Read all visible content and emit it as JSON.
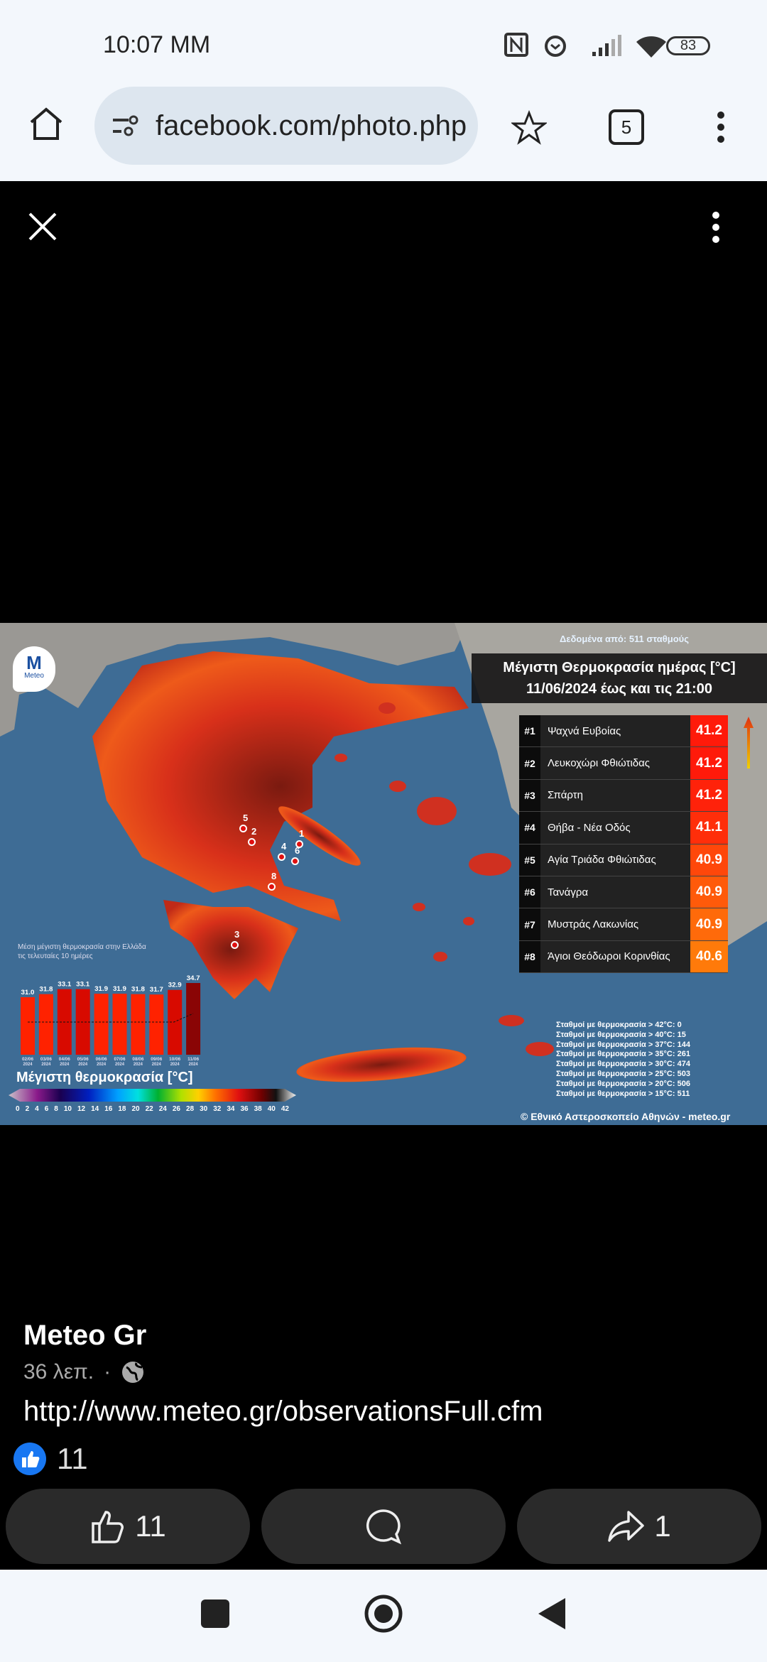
{
  "status_bar": {
    "time": "10:07 MM",
    "battery": "83",
    "icons": [
      "nfc-icon",
      "alarm-icon",
      "signal-icon",
      "wifi-icon",
      "battery-icon"
    ]
  },
  "browser": {
    "url": "facebook.com/photo.php",
    "tab_count": "5"
  },
  "photo": {
    "data_source": "Δεδομένα από: 511 σταθμούς",
    "logo_text": "Meteo",
    "title_line1": "Μέγιστη Θερμοκρασία ημέρας [°C]",
    "title_line2": "11/06/2024 έως και τις 21:00",
    "ranking": [
      {
        "rank": "#1",
        "name": "Ψαχνά Ευβοίας",
        "value": "41.2",
        "color": "#ff1a0a"
      },
      {
        "rank": "#2",
        "name": "Λευκοχώρι Φθιώτιδας",
        "value": "41.2",
        "color": "#ff1a0a"
      },
      {
        "rank": "#3",
        "name": "Σπάρτη",
        "value": "41.2",
        "color": "#ff220a"
      },
      {
        "rank": "#4",
        "name": "Θήβα - Νέα Οδός",
        "value": "41.1",
        "color": "#ff2e0a"
      },
      {
        "rank": "#5",
        "name": "Αγία Τριάδα Φθιώτιδας",
        "value": "40.9",
        "color": "#ff470a"
      },
      {
        "rank": "#6",
        "name": "Τανάγρα",
        "value": "40.9",
        "color": "#ff5a0a"
      },
      {
        "rank": "#7",
        "name": "Μυστράς Λακωνίας",
        "value": "40.9",
        "color": "#ff6a0a"
      },
      {
        "rank": "#8",
        "name": "Άγιοι Θεόδωροι Κορινθίας",
        "value": "40.6",
        "color": "#ff7a0a"
      }
    ],
    "map_markers": [
      "1",
      "2",
      "3",
      "4",
      "5",
      "6",
      "8"
    ],
    "chart_subtitle_line1": "Μέση μέγιστη θερμοκρασία στην Ελλάδα",
    "chart_subtitle_line2": "τις τελευταίες 10 ημέρες",
    "legend_title": "Μέγιστη θερμοκρασία [°C]",
    "legend_ticks": [
      "0",
      "2",
      "4",
      "6",
      "8",
      "10",
      "12",
      "14",
      "16",
      "18",
      "20",
      "22",
      "24",
      "26",
      "28",
      "30",
      "32",
      "34",
      "36",
      "38",
      "40",
      "42"
    ],
    "stats": [
      "Σταθμοί με θερμοκρασία > 42°C: 0",
      "Σταθμοί με θερμοκρασία > 40°C: 15",
      "Σταθμοί με θερμοκρασία > 37°C: 144",
      "Σταθμοί με θερμοκρασία > 35°C: 261",
      "Σταθμοί με θερμοκρασία > 30°C: 474",
      "Σταθμοί με θερμοκρασία > 25°C: 503",
      "Σταθμοί με θερμοκρασία > 20°C: 506",
      "Σταθμοί με θερμοκρασία > 15°C: 511"
    ],
    "copyright": "© Εθνικό Αστεροσκοπείο Αθηνών - meteo.gr"
  },
  "chart_data": {
    "type": "bar",
    "title": "Μέση μέγιστη θερμοκρασία στην Ελλάδα τις τελευταίες 10 ημέρες",
    "categories": [
      "02/06 2024",
      "03/06 2024",
      "04/06 2024",
      "05/06 2024",
      "06/06 2024",
      "07/06 2024",
      "08/06 2024",
      "09/06 2024",
      "10/06 2024",
      "11/06 2024"
    ],
    "values": [
      31.0,
      31.8,
      33.1,
      33.1,
      31.9,
      31.9,
      31.8,
      31.7,
      32.9,
      34.7
    ],
    "labels": [
      "31.0",
      "31.8",
      "33.1",
      "33.1",
      "31.9",
      "31.9",
      "31.8",
      "31.7",
      "32.9",
      "34.7"
    ]
  },
  "post": {
    "author": "Meteo Gr",
    "time": "36 λεπ.",
    "separator": "·",
    "link": "http://www.meteo.gr/observationsFull.cfm",
    "reaction_count": "11"
  },
  "actions": {
    "like_count": "11",
    "share_count": "1"
  }
}
